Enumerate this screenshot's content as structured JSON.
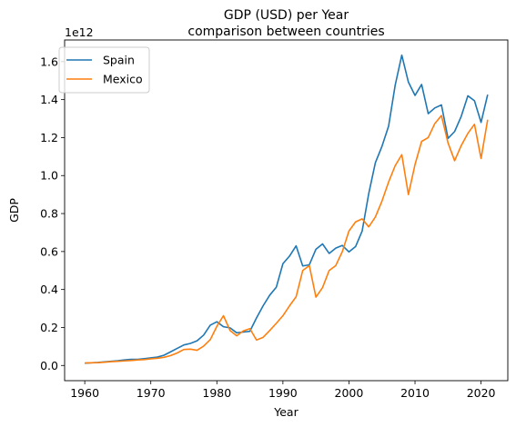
{
  "chart_data": {
    "type": "line",
    "title": "GDP (USD) per Year",
    "subtitle": "comparison between countries",
    "xlabel": "Year",
    "ylabel": "GDP",
    "y_multiplier_label": "1e12",
    "xlim": [
      1956.95,
      2024.05
    ],
    "ylim": [
      -0.08,
      1.714
    ],
    "x_ticks": [
      "1960",
      "1970",
      "1980",
      "1990",
      "2000",
      "2010",
      "2020"
    ],
    "y_ticks": [
      "0.0",
      "0.2",
      "0.4",
      "0.6",
      "0.8",
      "1.0",
      "1.2",
      "1.4",
      "1.6"
    ],
    "grid": false,
    "legend_position": "upper-left",
    "x": [
      1960,
      1961,
      1962,
      1963,
      1964,
      1965,
      1966,
      1967,
      1968,
      1969,
      1970,
      1971,
      1972,
      1973,
      1974,
      1975,
      1976,
      1977,
      1978,
      1979,
      1980,
      1981,
      1982,
      1983,
      1984,
      1985,
      1986,
      1987,
      1988,
      1989,
      1990,
      1991,
      1992,
      1993,
      1994,
      1995,
      1996,
      1997,
      1998,
      1999,
      2000,
      2001,
      2002,
      2003,
      2004,
      2005,
      2006,
      2007,
      2008,
      2009,
      2010,
      2011,
      2012,
      2013,
      2014,
      2015,
      2016,
      2017,
      2018,
      2019,
      2020,
      2021
    ],
    "series": [
      {
        "name": "Spain",
        "color": "#1f77b4",
        "values": [
          0.012,
          0.014,
          0.016,
          0.019,
          0.022,
          0.025,
          0.029,
          0.032,
          0.032,
          0.036,
          0.04,
          0.044,
          0.054,
          0.072,
          0.09,
          0.108,
          0.116,
          0.13,
          0.16,
          0.212,
          0.23,
          0.204,
          0.198,
          0.172,
          0.176,
          0.18,
          0.25,
          0.314,
          0.37,
          0.412,
          0.536,
          0.576,
          0.63,
          0.524,
          0.53,
          0.612,
          0.64,
          0.59,
          0.618,
          0.632,
          0.598,
          0.626,
          0.708,
          0.906,
          1.068,
          1.154,
          1.26,
          1.476,
          1.634,
          1.492,
          1.422,
          1.48,
          1.326,
          1.356,
          1.372,
          1.196,
          1.232,
          1.312,
          1.42,
          1.394,
          1.28,
          1.426
        ]
      },
      {
        "name": "Mexico",
        "color": "#ff7f0e",
        "values": [
          0.013,
          0.014,
          0.015,
          0.017,
          0.02,
          0.022,
          0.024,
          0.026,
          0.029,
          0.031,
          0.035,
          0.038,
          0.043,
          0.052,
          0.066,
          0.084,
          0.086,
          0.08,
          0.102,
          0.136,
          0.206,
          0.262,
          0.184,
          0.156,
          0.182,
          0.194,
          0.134,
          0.148,
          0.184,
          0.222,
          0.262,
          0.314,
          0.362,
          0.5,
          0.526,
          0.36,
          0.41,
          0.5,
          0.526,
          0.6,
          0.708,
          0.756,
          0.772,
          0.73,
          0.782,
          0.866,
          0.966,
          1.052,
          1.11,
          0.9,
          1.058,
          1.18,
          1.2,
          1.274,
          1.316,
          1.172,
          1.078,
          1.158,
          1.222,
          1.27,
          1.09,
          1.294
        ]
      }
    ]
  }
}
